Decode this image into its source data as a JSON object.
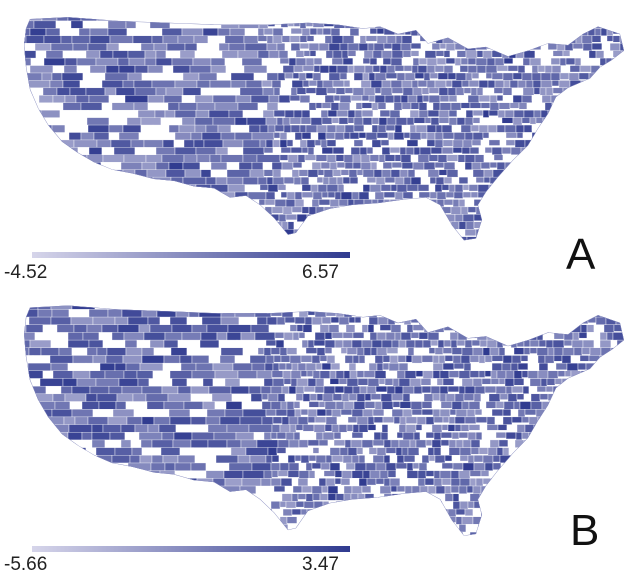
{
  "panels": [
    {
      "label": "A",
      "legend": {
        "min": "-4.52",
        "max": "6.57",
        "color_low": "#d6d5ea",
        "color_high": "#2f3a8f"
      },
      "seed": 7,
      "missing_rate": 0.16
    },
    {
      "label": "B",
      "legend": {
        "min": "-5.66",
        "max": "3.47",
        "color_low": "#d6d5ea",
        "color_high": "#2f3a8f"
      },
      "seed": 23,
      "missing_rate": 0.14
    }
  ],
  "colors": {
    "missing": "#ffffff",
    "border": "#ffffff"
  }
}
